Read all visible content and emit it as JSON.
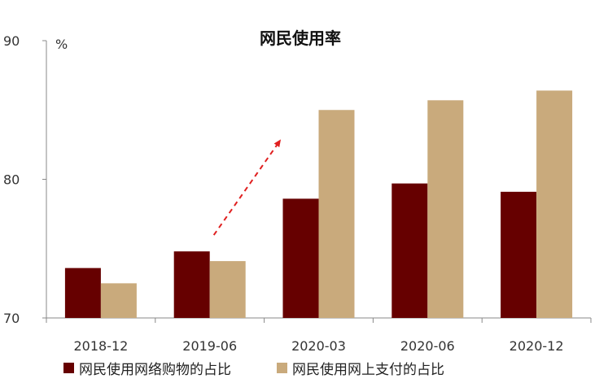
{
  "chart_data": {
    "type": "bar",
    "title": "网民使用率",
    "unit_label": "%",
    "categories": [
      "2018-12",
      "2019-06",
      "2020-03",
      "2020-06",
      "2020-12"
    ],
    "series": [
      {
        "name": "网民使用网络购物的占比",
        "color": "#660000",
        "values": [
          73.6,
          74.8,
          78.6,
          79.7,
          79.1
        ]
      },
      {
        "name": "网民使用网上支付的占比",
        "color": "#c9aa7c",
        "values": [
          72.5,
          74.1,
          85.0,
          85.7,
          86.4
        ]
      }
    ],
    "ylim": [
      70,
      90
    ],
    "yticks": [
      70,
      80,
      90
    ],
    "annotation": {
      "type": "dashed-arrow",
      "color": "#e02020"
    }
  }
}
